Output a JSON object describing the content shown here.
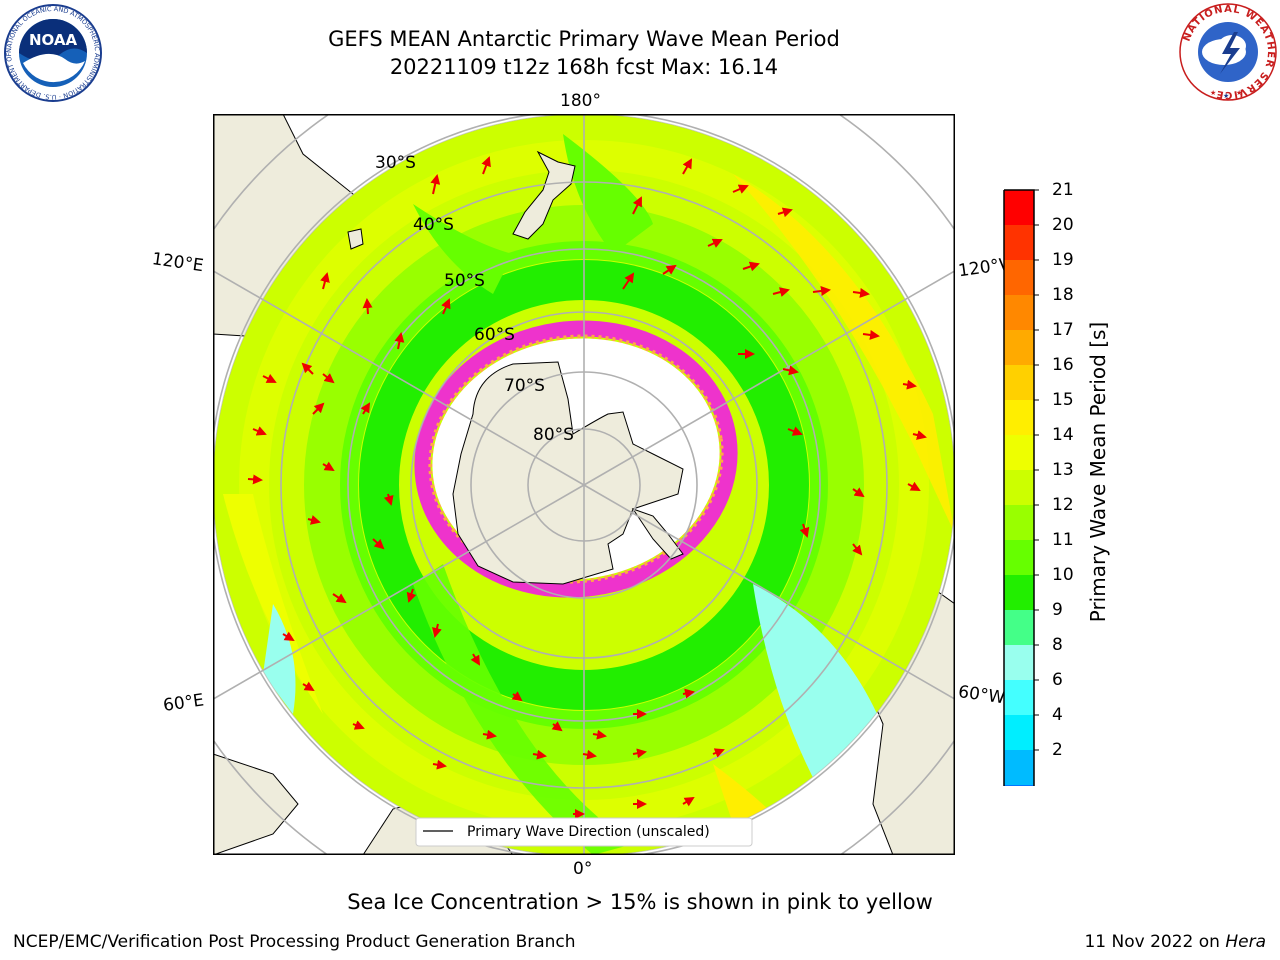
{
  "title": {
    "line1": "GEFS MEAN Antarctic Primary Wave Mean Period",
    "line2": "20221109 t12z 168h fcst   Max: 16.14"
  },
  "logos": {
    "left_text": "NOAA",
    "left_ring_text": "NATIONAL OCEANIC AND ATMOSPHERIC ADMINISTRATION · U.S. DEPARTMENT OF COMMERCE",
    "right_ring_text": "NATIONAL WEATHER SERVICE"
  },
  "map": {
    "projection": "south polar stereographic",
    "longitude_labels": [
      "180°",
      "120°E",
      "120°W",
      "60°E",
      "60°W",
      "0°"
    ],
    "latitude_labels": [
      "30°S",
      "40°S",
      "50°S",
      "60°S",
      "70°S",
      "80°S"
    ],
    "legend_label": "Primary Wave Direction (unscaled)",
    "colors": {
      "land": "#eeecdc",
      "sea_ice_edge": "#ee33cc",
      "sea_ice_inner": "#ffaa44"
    }
  },
  "colorbar": {
    "title": "Primary Wave Mean Period [s]",
    "ticks": [
      "21",
      "20",
      "19",
      "18",
      "17",
      "16",
      "15",
      "14",
      "13",
      "12",
      "11",
      "10",
      "9",
      "8",
      "6",
      "4",
      "2"
    ],
    "colors_top_to_bottom": [
      "#ff0000",
      "#ff3300",
      "#ff6600",
      "#ff8800",
      "#ffaa00",
      "#ffd000",
      "#ffee00",
      "#eeff00",
      "#ccff00",
      "#99ff00",
      "#66ff00",
      "#22ee00",
      "#44ff88",
      "#99ffee",
      "#44ffff",
      "#00eeff",
      "#00bbff",
      "#0077ff"
    ],
    "extend_color": "#0000ff"
  },
  "note": "Sea Ice Concentration > 15% is shown in pink to yellow",
  "footer": {
    "left": "NCEP/EMC/Verification Post Processing Product Generation Branch",
    "right_date": "11 Nov 2022 on ",
    "right_host": "Hera"
  }
}
